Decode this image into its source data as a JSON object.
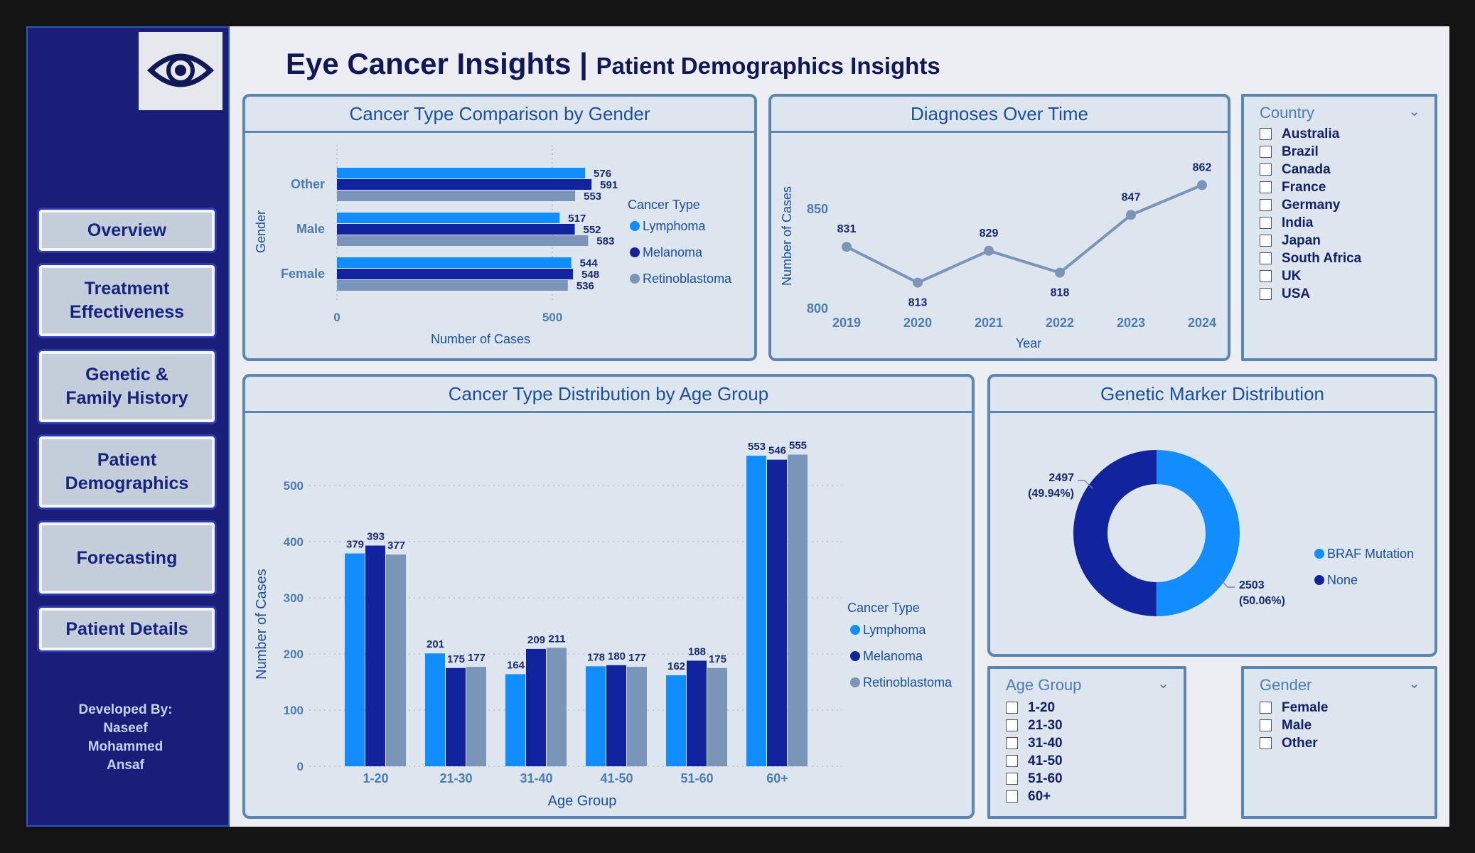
{
  "header": {
    "title": "Eye Cancer Insights |",
    "subtitle": "Patient Demographics Insights"
  },
  "nav": [
    {
      "label": "Overview"
    },
    {
      "label": "Treatment Effectiveness"
    },
    {
      "label": "Genetic & Family History"
    },
    {
      "label": "Patient Demographics"
    },
    {
      "label": "Forecasting"
    },
    {
      "label": "Patient Details"
    }
  ],
  "developer": {
    "line1": "Developed By:",
    "line2": "Naseef",
    "line3": "Mohammed",
    "line4": "Ansaf"
  },
  "colors": {
    "lymphoma": "#118dff",
    "melanoma": "#12239e",
    "retinoblastoma": "#7a95b8",
    "line": "#7a95b8",
    "sidebar": "#1a1e78"
  },
  "cards": {
    "gender": "Cancer Type Comparison by Gender",
    "time": "Diagnoses Over Time",
    "age": "Cancer Type Distribution by Age Group",
    "genetic": "Genetic Marker Distribution"
  },
  "slicers": {
    "country": {
      "title": "Country",
      "items": [
        "Australia",
        "Brazil",
        "Canada",
        "France",
        "Germany",
        "India",
        "Japan",
        "South Africa",
        "UK",
        "USA"
      ]
    },
    "age_group": {
      "title": "Age Group",
      "items": [
        "1-20",
        "21-30",
        "31-40",
        "41-50",
        "51-60",
        "60+"
      ]
    },
    "gender": {
      "title": "Gender",
      "items": [
        "Female",
        "Male",
        "Other"
      ]
    }
  },
  "chart_data": [
    {
      "type": "bar",
      "orientation": "horizontal",
      "title": "Cancer Type Comparison by Gender",
      "xlabel": "Number of Cases",
      "ylabel": "Gender",
      "categories": [
        "Other",
        "Male",
        "Female"
      ],
      "xticks": [
        "0",
        "500"
      ],
      "xlim": [
        0,
        950
      ],
      "legend_title": "Cancer Type",
      "series": [
        {
          "name": "Lymphoma",
          "values": [
            576,
            517,
            544
          ]
        },
        {
          "name": "Melanoma",
          "values": [
            591,
            552,
            548
          ]
        },
        {
          "name": "Retinoblastoma",
          "values": [
            553,
            583,
            536
          ]
        }
      ]
    },
    {
      "type": "line",
      "title": "Diagnoses Over Time",
      "xlabel": "Year",
      "ylabel": "Number of Cases",
      "x": [
        "2019",
        "2020",
        "2021",
        "2022",
        "2023",
        "2024"
      ],
      "values": [
        831,
        813,
        829,
        818,
        847,
        862
      ],
      "yticks": [
        "800",
        "850"
      ],
      "ylim": [
        800,
        870
      ]
    },
    {
      "type": "bar",
      "title": "Cancer Type Distribution by Age Group",
      "xlabel": "Age Group",
      "ylabel": "Number of Cases",
      "categories": [
        "1-20",
        "21-30",
        "31-40",
        "41-50",
        "51-60",
        "60+"
      ],
      "yticks": [
        "0",
        "100",
        "200",
        "300",
        "400",
        "500"
      ],
      "ylim": [
        0,
        560
      ],
      "legend_title": "Cancer Type",
      "series": [
        {
          "name": "Lymphoma",
          "values": [
            379,
            201,
            164,
            178,
            162,
            553
          ]
        },
        {
          "name": "Melanoma",
          "values": [
            393,
            175,
            209,
            180,
            188,
            546
          ]
        },
        {
          "name": "Retinoblastoma",
          "values": [
            377,
            177,
            211,
            177,
            175,
            555
          ]
        }
      ]
    },
    {
      "type": "pie",
      "title": "Genetic Marker Distribution",
      "donut": true,
      "labels": [
        "BRAF Mutation",
        "None"
      ],
      "values": [
        2503,
        2497
      ],
      "label_text": [
        "2503",
        "2497"
      ],
      "pct_text": [
        "(50.06%)",
        "(49.94%)"
      ]
    }
  ]
}
